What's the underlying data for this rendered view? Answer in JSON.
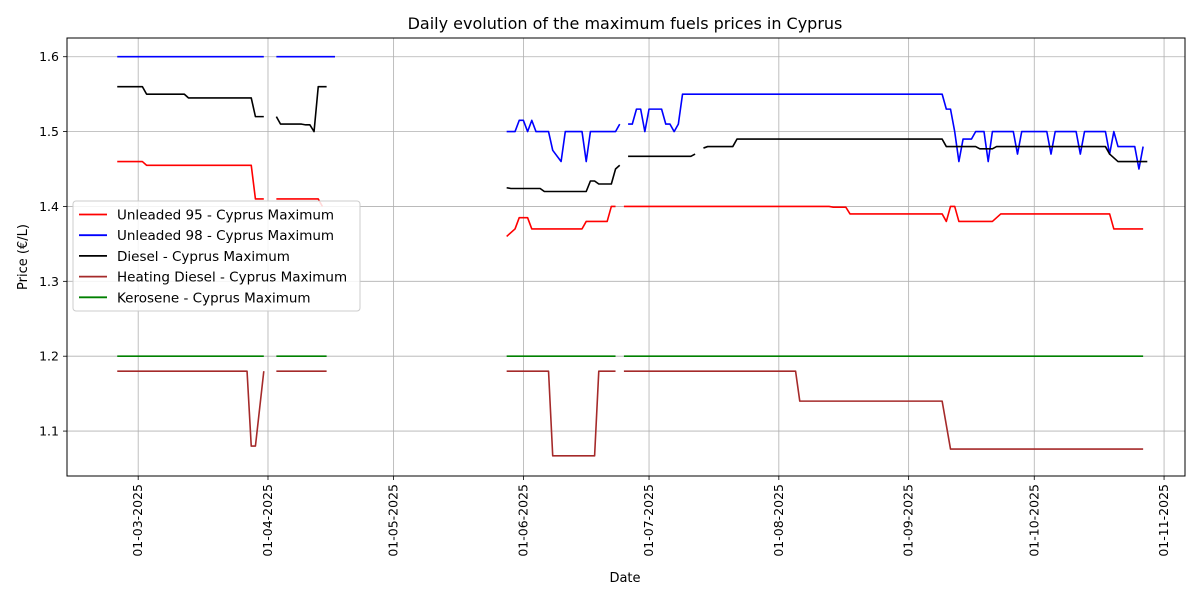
{
  "chart_data": {
    "type": "line",
    "title": "Daily evolution of the maximum fuels prices in Cyprus",
    "xlabel": "Date",
    "ylabel": "Price (€/L)",
    "xlim": [
      "2025-02-12",
      "2025-11-06"
    ],
    "ylim": [
      1.04,
      1.625
    ],
    "grid": true,
    "legend_position": "center-left",
    "x_ticks": [
      "01-03-2025",
      "01-04-2025",
      "01-05-2025",
      "01-06-2025",
      "01-07-2025",
      "01-08-2025",
      "01-09-2025",
      "01-10-2025",
      "01-11-2025"
    ],
    "y_ticks": [
      "1.1",
      "1.2",
      "1.3",
      "1.4",
      "1.5",
      "1.6"
    ],
    "series": [
      {
        "name": "Unleaded 95 - Cyprus Maximum",
        "color": "#ff0000",
        "segments": [
          [
            [
              "2025-02-24",
              1.46
            ],
            [
              "2025-03-02",
              1.46
            ],
            [
              "2025-03-03",
              1.455
            ],
            [
              "2025-03-28",
              1.455
            ],
            [
              "2025-03-29",
              1.41
            ],
            [
              "2025-03-31",
              1.41
            ]
          ],
          [
            [
              "2025-04-03",
              1.41
            ],
            [
              "2025-04-13",
              1.41
            ],
            [
              "2025-04-14",
              1.4
            ]
          ],
          [
            [
              "2025-05-28",
              1.36
            ],
            [
              "2025-05-30",
              1.37
            ],
            [
              "2025-05-31",
              1.385
            ],
            [
              "2025-06-02",
              1.385
            ],
            [
              "2025-06-03",
              1.37
            ],
            [
              "2025-06-15",
              1.37
            ],
            [
              "2025-06-16",
              1.38
            ],
            [
              "2025-06-21",
              1.38
            ],
            [
              "2025-06-22",
              1.4
            ],
            [
              "2025-06-23",
              1.4
            ]
          ],
          [
            [
              "2025-06-25",
              1.4
            ],
            [
              "2025-08-13",
              1.4
            ],
            [
              "2025-08-14",
              1.399
            ],
            [
              "2025-08-17",
              1.399
            ],
            [
              "2025-08-18",
              1.39
            ],
            [
              "2025-09-09",
              1.39
            ],
            [
              "2025-09-10",
              1.38
            ],
            [
              "2025-09-11",
              1.4
            ],
            [
              "2025-09-12",
              1.4
            ],
            [
              "2025-09-13",
              1.38
            ],
            [
              "2025-09-21",
              1.38
            ],
            [
              "2025-09-23",
              1.39
            ],
            [
              "2025-10-19",
              1.39
            ],
            [
              "2025-10-20",
              1.37
            ],
            [
              "2025-10-27",
              1.37
            ]
          ]
        ]
      },
      {
        "name": "Unleaded 98 - Cyprus Maximum",
        "color": "#0000ff",
        "segments": [
          [
            [
              "2025-02-24",
              1.6
            ],
            [
              "2025-03-31",
              1.6
            ]
          ],
          [
            [
              "2025-04-03",
              1.6
            ],
            [
              "2025-04-17",
              1.6
            ]
          ],
          [
            [
              "2025-05-28",
              1.5
            ],
            [
              "2025-05-30",
              1.5
            ],
            [
              "2025-05-31",
              1.515
            ],
            [
              "2025-06-01",
              1.515
            ],
            [
              "2025-06-02",
              1.5
            ],
            [
              "2025-06-03",
              1.515
            ],
            [
              "2025-06-04",
              1.5
            ],
            [
              "2025-06-07",
              1.5
            ],
            [
              "2025-06-08",
              1.475
            ],
            [
              "2025-06-10",
              1.46
            ],
            [
              "2025-06-11",
              1.5
            ],
            [
              "2025-06-15",
              1.5
            ],
            [
              "2025-06-16",
              1.46
            ],
            [
              "2025-06-17",
              1.5
            ],
            [
              "2025-06-23",
              1.5
            ],
            [
              "2025-06-24",
              1.51
            ]
          ],
          [
            [
              "2025-06-26",
              1.51
            ],
            [
              "2025-06-27",
              1.51
            ],
            [
              "2025-06-28",
              1.53
            ],
            [
              "2025-06-29",
              1.53
            ],
            [
              "2025-06-30",
              1.5
            ],
            [
              "2025-07-01",
              1.53
            ],
            [
              "2025-07-04",
              1.53
            ],
            [
              "2025-07-05",
              1.51
            ],
            [
              "2025-07-06",
              1.51
            ],
            [
              "2025-07-07",
              1.5
            ],
            [
              "2025-07-08",
              1.51
            ],
            [
              "2025-07-09",
              1.55
            ],
            [
              "2025-09-09",
              1.55
            ],
            [
              "2025-09-10",
              1.53
            ],
            [
              "2025-09-11",
              1.53
            ],
            [
              "2025-09-12",
              1.5
            ],
            [
              "2025-09-13",
              1.46
            ],
            [
              "2025-09-14",
              1.49
            ],
            [
              "2025-09-16",
              1.49
            ],
            [
              "2025-09-17",
              1.5
            ],
            [
              "2025-09-19",
              1.5
            ],
            [
              "2025-09-20",
              1.46
            ],
            [
              "2025-09-21",
              1.5
            ],
            [
              "2025-09-26",
              1.5
            ],
            [
              "2025-09-27",
              1.47
            ],
            [
              "2025-09-28",
              1.5
            ],
            [
              "2025-10-04",
              1.5
            ],
            [
              "2025-10-05",
              1.47
            ],
            [
              "2025-10-06",
              1.5
            ],
            [
              "2025-10-11",
              1.5
            ],
            [
              "2025-10-12",
              1.47
            ],
            [
              "2025-10-13",
              1.5
            ],
            [
              "2025-10-18",
              1.5
            ],
            [
              "2025-10-19",
              1.47
            ],
            [
              "2025-10-20",
              1.5
            ],
            [
              "2025-10-21",
              1.48
            ],
            [
              "2025-10-25",
              1.48
            ],
            [
              "2025-10-26",
              1.45
            ],
            [
              "2025-10-27",
              1.48
            ]
          ]
        ]
      },
      {
        "name": "Diesel - Cyprus Maximum",
        "color": "#000000",
        "segments": [
          [
            [
              "2025-02-24",
              1.56
            ],
            [
              "2025-03-02",
              1.56
            ],
            [
              "2025-03-03",
              1.55
            ],
            [
              "2025-03-12",
              1.55
            ],
            [
              "2025-03-13",
              1.545
            ],
            [
              "2025-03-28",
              1.545
            ],
            [
              "2025-03-29",
              1.52
            ],
            [
              "2025-03-31",
              1.52
            ]
          ],
          [
            [
              "2025-04-03",
              1.52
            ],
            [
              "2025-04-04",
              1.51
            ],
            [
              "2025-04-09",
              1.51
            ],
            [
              "2025-04-10",
              1.509
            ],
            [
              "2025-04-11",
              1.509
            ],
            [
              "2025-04-12",
              1.5
            ],
            [
              "2025-04-13",
              1.56
            ],
            [
              "2025-04-15",
              1.56
            ]
          ],
          [
            [
              "2025-05-28",
              1.425
            ],
            [
              "2025-05-29",
              1.424
            ],
            [
              "2025-06-05",
              1.424
            ],
            [
              "2025-06-06",
              1.42
            ],
            [
              "2025-06-16",
              1.42
            ],
            [
              "2025-06-17",
              1.434
            ],
            [
              "2025-06-18",
              1.434
            ],
            [
              "2025-06-19",
              1.43
            ],
            [
              "2025-06-22",
              1.43
            ],
            [
              "2025-06-23",
              1.45
            ],
            [
              "2025-06-24",
              1.455
            ]
          ],
          [
            [
              "2025-06-26",
              1.467
            ],
            [
              "2025-07-11",
              1.467
            ],
            [
              "2025-07-12",
              1.47
            ]
          ],
          [
            [
              "2025-07-14",
              1.478
            ],
            [
              "2025-07-15",
              1.48
            ],
            [
              "2025-07-21",
              1.48
            ],
            [
              "2025-07-22",
              1.49
            ],
            [
              "2025-09-09",
              1.49
            ],
            [
              "2025-09-10",
              1.48
            ],
            [
              "2025-09-17",
              1.48
            ],
            [
              "2025-09-18",
              1.477
            ],
            [
              "2025-09-21",
              1.477
            ],
            [
              "2025-09-22",
              1.48
            ],
            [
              "2025-10-18",
              1.48
            ],
            [
              "2025-10-19",
              1.47
            ],
            [
              "2025-10-21",
              1.46
            ],
            [
              "2025-10-28",
              1.46
            ]
          ]
        ]
      },
      {
        "name": "Heating Diesel - Cyprus Maximum",
        "color": "#a52a2a",
        "segments": [
          [
            [
              "2025-02-24",
              1.18
            ],
            [
              "2025-03-27",
              1.18
            ],
            [
              "2025-03-28",
              1.08
            ],
            [
              "2025-03-29",
              1.08
            ],
            [
              "2025-03-31",
              1.18
            ]
          ],
          [
            [
              "2025-04-03",
              1.18
            ],
            [
              "2025-04-15",
              1.18
            ]
          ],
          [
            [
              "2025-05-28",
              1.18
            ],
            [
              "2025-06-07",
              1.18
            ],
            [
              "2025-06-08",
              1.067
            ],
            [
              "2025-06-18",
              1.067
            ],
            [
              "2025-06-19",
              1.18
            ],
            [
              "2025-06-23",
              1.18
            ]
          ],
          [
            [
              "2025-06-25",
              1.18
            ],
            [
              "2025-08-05",
              1.18
            ],
            [
              "2025-08-06",
              1.14
            ],
            [
              "2025-09-09",
              1.14
            ],
            [
              "2025-09-11",
              1.076
            ],
            [
              "2025-10-27",
              1.076
            ]
          ]
        ]
      },
      {
        "name": "Kerosene - Cyprus Maximum",
        "color": "#008000",
        "segments": [
          [
            [
              "2025-02-24",
              1.2
            ],
            [
              "2025-03-31",
              1.2
            ]
          ],
          [
            [
              "2025-04-03",
              1.2
            ],
            [
              "2025-04-15",
              1.2
            ]
          ],
          [
            [
              "2025-05-28",
              1.2
            ],
            [
              "2025-06-23",
              1.2
            ]
          ],
          [
            [
              "2025-06-25",
              1.2
            ],
            [
              "2025-10-27",
              1.2
            ]
          ]
        ]
      }
    ]
  }
}
